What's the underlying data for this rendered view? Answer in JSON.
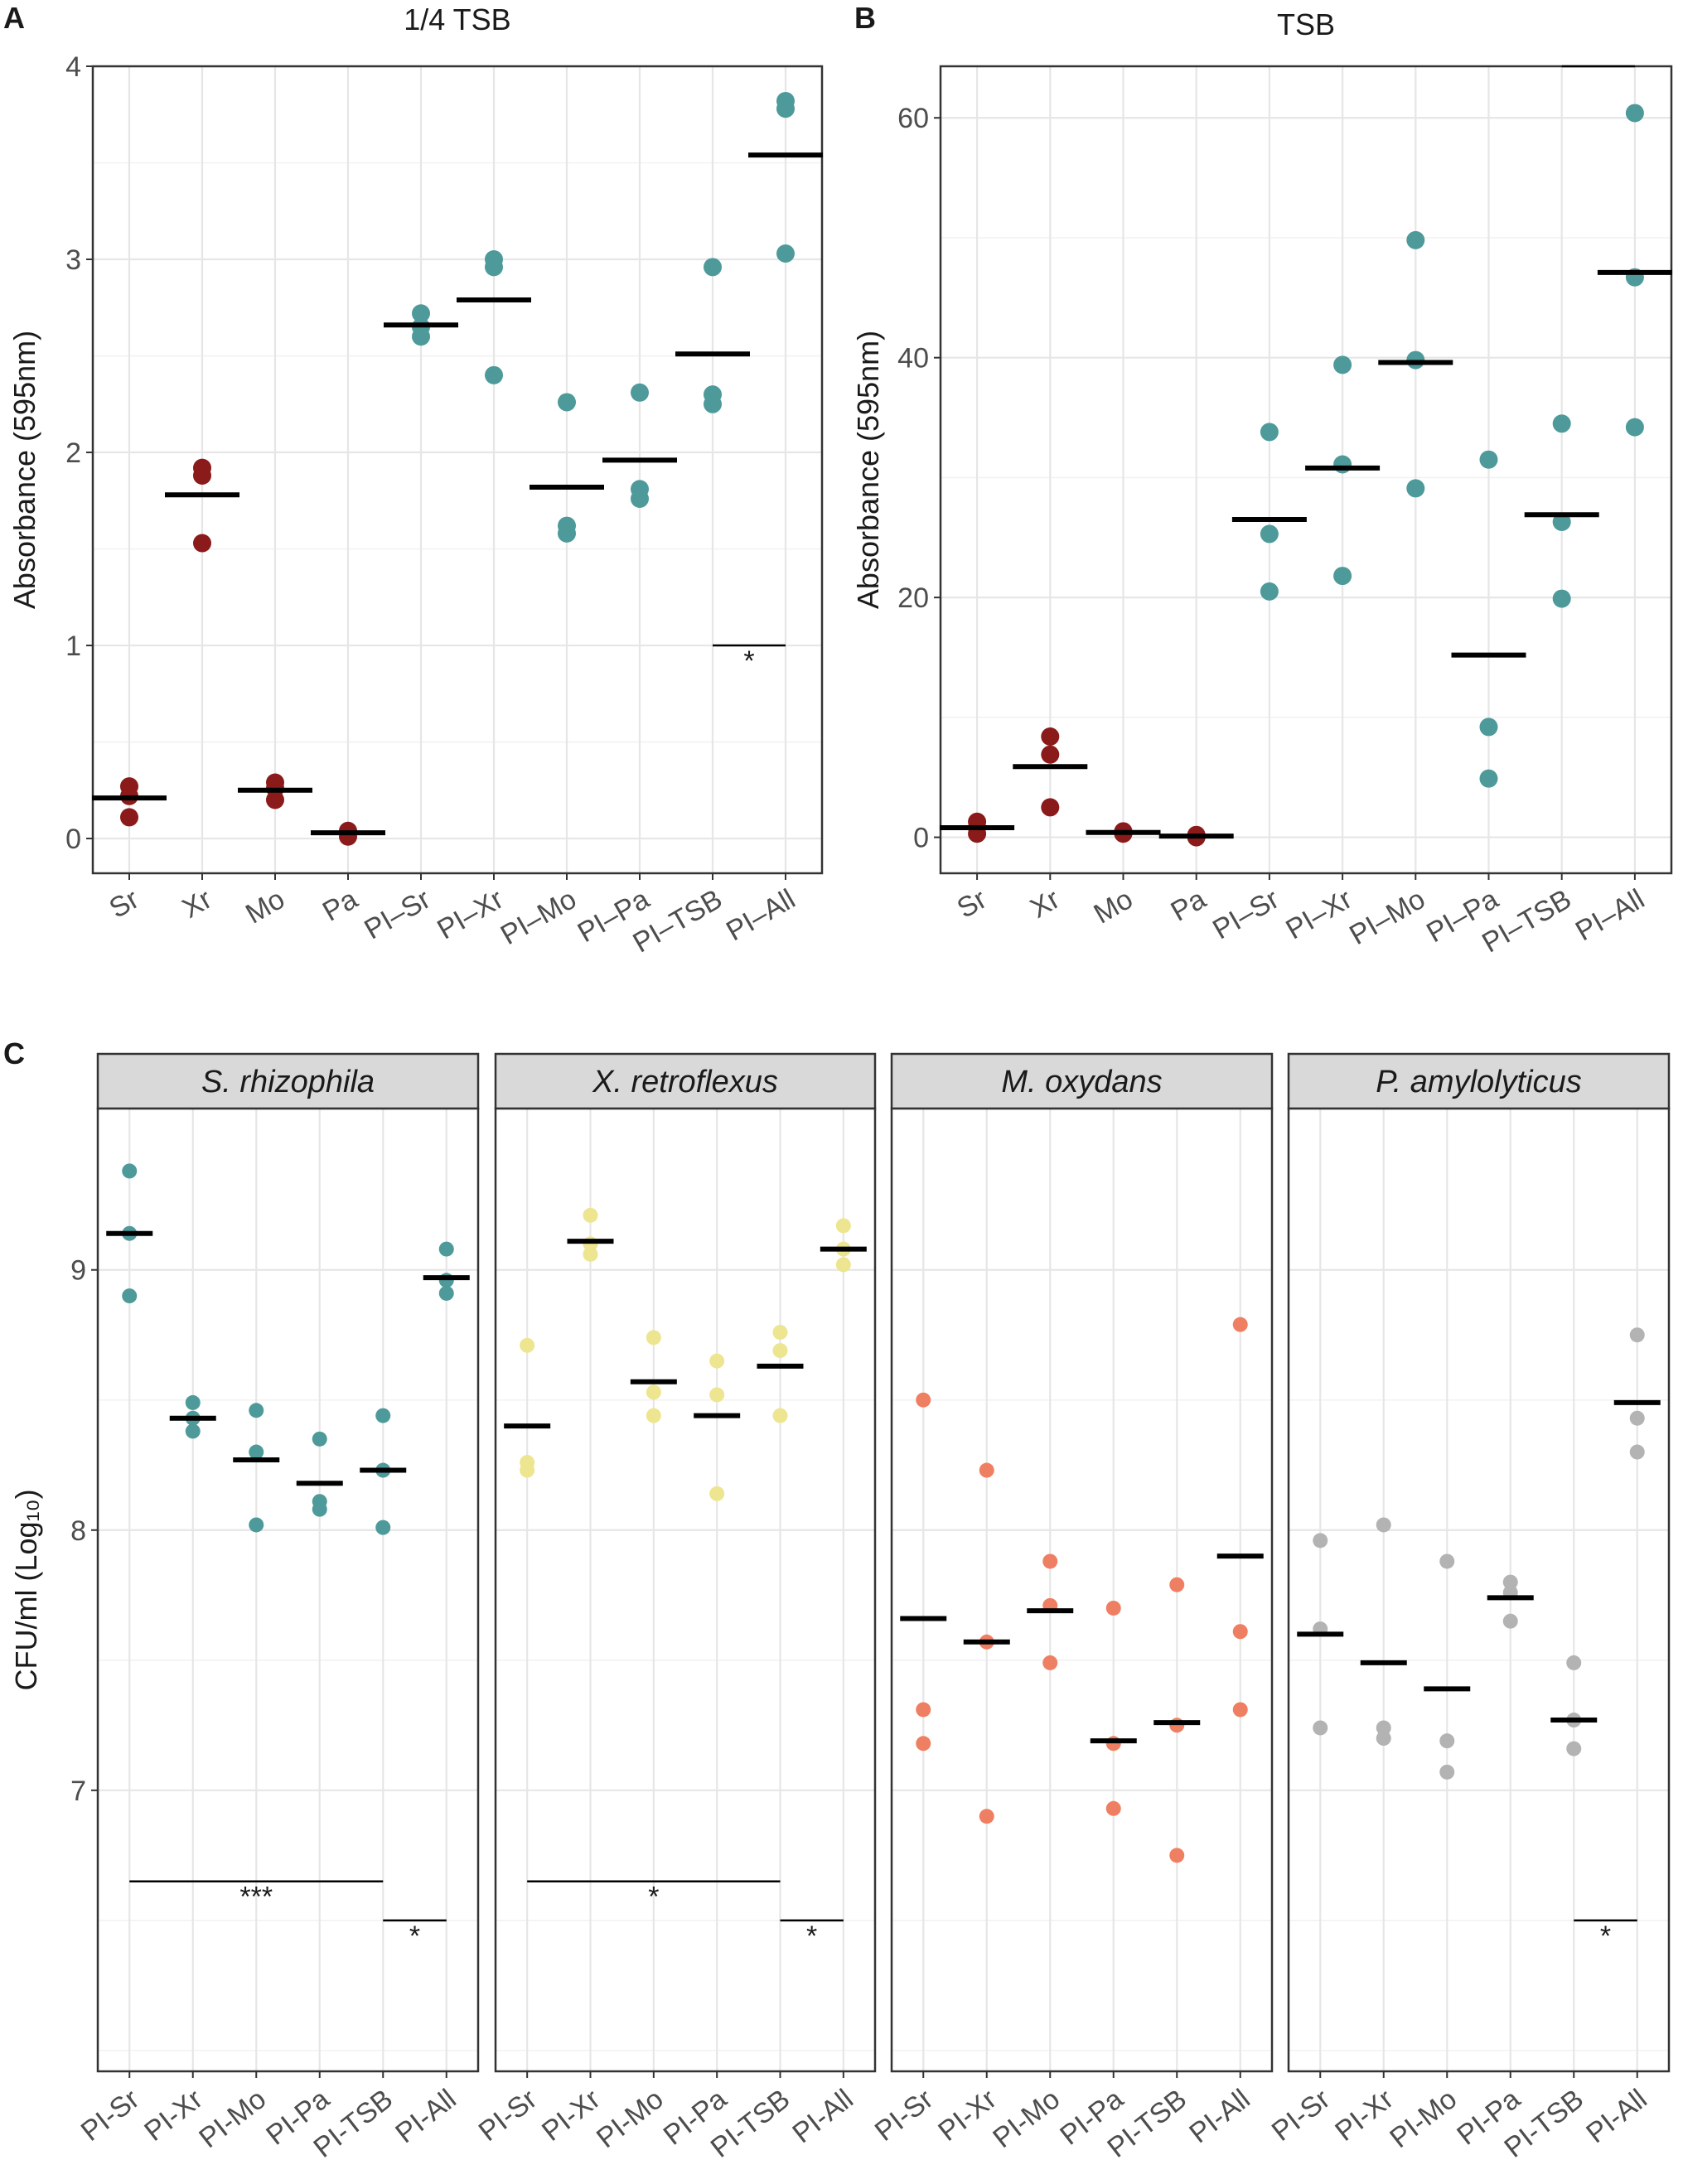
{
  "chart_data": [
    {
      "type": "scatter",
      "panel": "A",
      "title": "1/4 TSB",
      "xlabel": "",
      "ylabel": "Absorbance (595nm)",
      "ylim": [
        -0.18,
        4
      ],
      "yticks": [
        0,
        1,
        2,
        3,
        4
      ],
      "categories": [
        "Sr",
        "Xr",
        "Mo",
        "Pa",
        "PI–Sr",
        "PI–Xr",
        "PI–Mo",
        "PI–Pa",
        "PI–TSB",
        "PI–All"
      ],
      "point_values": [
        [
          0.27,
          0.11,
          0.22
        ],
        [
          1.92,
          1.88,
          1.53
        ],
        [
          0.29,
          0.2,
          0.26
        ],
        [
          0.03,
          0.01,
          0.04
        ],
        [
          2.72,
          2.6,
          2.65
        ],
        [
          3.0,
          2.96,
          2.4
        ],
        [
          2.26,
          1.62,
          1.58
        ],
        [
          2.31,
          1.81,
          1.76
        ],
        [
          2.96,
          2.3,
          2.25
        ],
        [
          3.82,
          3.78,
          3.03
        ]
      ],
      "means": [
        0.21,
        1.78,
        0.25,
        0.03,
        2.66,
        2.79,
        1.82,
        1.96,
        2.51,
        3.54
      ],
      "point_colors": [
        "#8b1a1a",
        "#8b1a1a",
        "#8b1a1a",
        "#8b1a1a",
        "#4e9a9a",
        "#4e9a9a",
        "#4e9a9a",
        "#4e9a9a",
        "#4e9a9a",
        "#4e9a9a"
      ],
      "significance": [
        {
          "from": 8,
          "to": 9,
          "y": 1.0,
          "label": "*"
        }
      ]
    },
    {
      "type": "scatter",
      "panel": "B",
      "title": "TSB",
      "xlabel": "",
      "ylabel": "Absorbance (595nm)",
      "ylim": [
        -3,
        64.3
      ],
      "yticks": [
        0,
        20,
        40,
        60
      ],
      "categories": [
        "Sr",
        "Xr",
        "Mo",
        "Pa",
        "PI–Sr",
        "PI–Xr",
        "PI–Mo",
        "PI–Pa",
        "PI–TSB",
        "PI–All"
      ],
      "point_values": [
        [
          1.3,
          0.3,
          0.8
        ],
        [
          8.4,
          6.9,
          2.5
        ],
        [
          0.4,
          0.3,
          0.5
        ],
        [
          0.1,
          0.0,
          0.2
        ],
        [
          33.8,
          25.3,
          20.5
        ],
        [
          39.4,
          31.1,
          21.8
        ],
        [
          49.8,
          39.8,
          29.1
        ],
        [
          31.5,
          9.2,
          4.9
        ],
        [
          34.5,
          26.3,
          19.9
        ],
        [
          60.4,
          46.7,
          34.2
        ]
      ],
      "means": [
        0.8,
        5.9,
        0.4,
        0.1,
        26.5,
        30.8,
        39.6,
        15.2,
        26.9,
        47.1
      ],
      "point_colors": [
        "#8b1a1a",
        "#8b1a1a",
        "#8b1a1a",
        "#8b1a1a",
        "#4e9a9a",
        "#4e9a9a",
        "#4e9a9a",
        "#4e9a9a",
        "#4e9a9a",
        "#4e9a9a"
      ],
      "significance": [
        {
          "from": 8,
          "to": 9,
          "y": 64.3,
          "label": ""
        }
      ]
    },
    {
      "type": "scatter",
      "panel": "C",
      "ylabel": "CFU/ml (Log₁₀)",
      "ylim": [
        5.92,
        9.62
      ],
      "yticks": [
        7,
        8,
        9
      ],
      "categories": [
        "PI-Sr",
        "PI-Xr",
        "PI-Mo",
        "PI-Pa",
        "PI-TSB",
        "PI-All"
      ],
      "facets": [
        {
          "name": "S. rhizophila",
          "color": "#4e9a9a",
          "point_values": [
            [
              9.38,
              9.14,
              8.9
            ],
            [
              8.49,
              8.38,
              8.43
            ],
            [
              8.46,
              8.3,
              8.02
            ],
            [
              8.35,
              8.11,
              8.08
            ],
            [
              8.44,
              8.23,
              8.01
            ],
            [
              9.08,
              8.91,
              8.96
            ]
          ],
          "means": [
            9.14,
            8.43,
            8.27,
            8.18,
            8.23,
            8.97
          ],
          "significance": [
            {
              "from": 0,
              "to": 4,
              "y": 6.65,
              "label": "***"
            },
            {
              "from": 4,
              "to": 5,
              "y": 6.5,
              "label": "*"
            }
          ]
        },
        {
          "name": "X. retroflexus",
          "color": "#ede58f",
          "point_values": [
            [
              8.71,
              8.26,
              8.23
            ],
            [
              9.21,
              9.06,
              9.1
            ],
            [
              8.74,
              8.53,
              8.44
            ],
            [
              8.65,
              8.52,
              8.14
            ],
            [
              8.76,
              8.69,
              8.44
            ],
            [
              9.17,
              9.02,
              9.08
            ]
          ],
          "means": [
            8.4,
            9.11,
            8.57,
            8.44,
            8.63,
            9.08
          ],
          "significance": [
            {
              "from": 0,
              "to": 4,
              "y": 6.65,
              "label": "*"
            },
            {
              "from": 4,
              "to": 5,
              "y": 6.5,
              "label": "*"
            }
          ]
        },
        {
          "name": "M. oxydans",
          "color": "#ef7f63",
          "point_values": [
            [
              8.5,
              7.31,
              7.18
            ],
            [
              8.23,
              7.57,
              6.9
            ],
            [
              7.88,
              7.71,
              7.49
            ],
            [
              7.7,
              7.18,
              6.93
            ],
            [
              7.79,
              7.25,
              6.75
            ],
            [
              8.79,
              7.61,
              7.31
            ]
          ],
          "means": [
            7.66,
            7.57,
            7.69,
            7.19,
            7.26,
            7.9
          ],
          "significance": []
        },
        {
          "name": "P. amylolyticus",
          "color": "#b3b3b3",
          "point_values": [
            [
              7.96,
              7.62,
              7.24
            ],
            [
              8.02,
              7.24,
              7.2
            ],
            [
              7.88,
              7.19,
              7.07
            ],
            [
              7.8,
              7.76,
              7.65
            ],
            [
              7.49,
              7.16,
              7.27
            ],
            [
              8.75,
              8.43,
              8.3
            ]
          ],
          "means": [
            7.6,
            7.49,
            7.39,
            7.74,
            7.27,
            8.49
          ],
          "significance": [
            {
              "from": 4,
              "to": 5,
              "y": 6.5,
              "label": "*"
            }
          ]
        }
      ]
    }
  ],
  "labels": {
    "panel_a": "A",
    "panel_b": "B",
    "panel_c": "C"
  }
}
